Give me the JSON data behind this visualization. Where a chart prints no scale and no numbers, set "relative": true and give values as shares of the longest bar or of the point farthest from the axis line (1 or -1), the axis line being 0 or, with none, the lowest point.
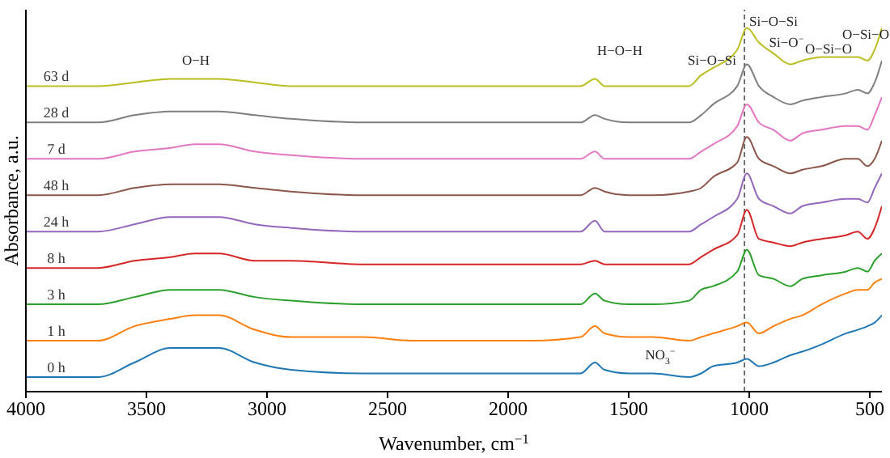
{
  "chart_data": {
    "type": "line",
    "relative": true,
    "xlabel": "Wavenumber, cm$^{−1}$",
    "ylabel": "Absorbance, a.u.",
    "x": [
      4000,
      3700,
      3550,
      3400,
      3300,
      3200,
      3050,
      2900,
      2600,
      2400,
      2100,
      1900,
      1700,
      1640,
      1600,
      1500,
      1400,
      1250,
      1200,
      1150,
      1050,
      1010,
      960,
      900,
      830,
      780,
      700,
      600,
      550,
      510,
      480,
      450
    ],
    "xlim": [
      4000,
      450
    ],
    "xticks": [
      4000,
      3500,
      3000,
      2500,
      2000,
      1500,
      1000,
      500
    ],
    "series": [
      {
        "name": "0 h",
        "color": "#1f77b4",
        "values": [
          0.04,
          0.04,
          0.08,
          0.12,
          0.12,
          0.12,
          0.08,
          0.06,
          0.05,
          0.05,
          0.05,
          0.05,
          0.05,
          0.08,
          0.06,
          0.05,
          0.05,
          0.04,
          0.05,
          0.07,
          0.08,
          0.09,
          0.07,
          0.08,
          0.1,
          0.11,
          0.13,
          0.16,
          0.17,
          0.18,
          0.19,
          0.21
        ]
      },
      {
        "name": "1 h",
        "color": "#ff7f0e",
        "values": [
          0.14,
          0.14,
          0.18,
          0.2,
          0.21,
          0.21,
          0.17,
          0.15,
          0.15,
          0.14,
          0.14,
          0.14,
          0.15,
          0.18,
          0.16,
          0.15,
          0.15,
          0.14,
          0.15,
          0.16,
          0.18,
          0.19,
          0.16,
          0.18,
          0.2,
          0.21,
          0.24,
          0.27,
          0.28,
          0.28,
          0.3,
          0.31
        ]
      },
      {
        "name": "3 h",
        "color": "#2ca02c",
        "values": [
          0.24,
          0.24,
          0.26,
          0.28,
          0.28,
          0.28,
          0.26,
          0.25,
          0.24,
          0.24,
          0.24,
          0.24,
          0.24,
          0.27,
          0.25,
          0.24,
          0.24,
          0.25,
          0.28,
          0.29,
          0.33,
          0.39,
          0.32,
          0.31,
          0.29,
          0.31,
          0.32,
          0.33,
          0.34,
          0.33,
          0.36,
          0.38
        ]
      },
      {
        "name": "8 h",
        "color": "#d62728",
        "values": [
          0.34,
          0.34,
          0.36,
          0.37,
          0.38,
          0.38,
          0.36,
          0.36,
          0.35,
          0.35,
          0.35,
          0.35,
          0.35,
          0.36,
          0.35,
          0.35,
          0.35,
          0.35,
          0.37,
          0.39,
          0.43,
          0.5,
          0.42,
          0.41,
          0.4,
          0.41,
          0.42,
          0.43,
          0.44,
          0.42,
          0.45,
          0.51
        ]
      },
      {
        "name": "24 h",
        "color": "#9467bd",
        "values": [
          0.44,
          0.44,
          0.46,
          0.48,
          0.48,
          0.48,
          0.46,
          0.45,
          0.44,
          0.44,
          0.44,
          0.44,
          0.44,
          0.47,
          0.44,
          0.44,
          0.44,
          0.44,
          0.46,
          0.48,
          0.53,
          0.6,
          0.53,
          0.51,
          0.49,
          0.51,
          0.52,
          0.53,
          0.53,
          0.52,
          0.56,
          0.6
        ]
      },
      {
        "name": "48 h",
        "color": "#8c564b",
        "values": [
          0.54,
          0.54,
          0.56,
          0.57,
          0.57,
          0.57,
          0.56,
          0.55,
          0.54,
          0.54,
          0.54,
          0.54,
          0.54,
          0.56,
          0.55,
          0.54,
          0.54,
          0.55,
          0.56,
          0.59,
          0.63,
          0.7,
          0.64,
          0.62,
          0.6,
          0.61,
          0.62,
          0.64,
          0.64,
          0.62,
          0.64,
          0.69
        ]
      },
      {
        "name": "7 d",
        "color": "#e377c2",
        "values": [
          0.64,
          0.64,
          0.66,
          0.67,
          0.68,
          0.68,
          0.66,
          0.65,
          0.64,
          0.64,
          0.64,
          0.64,
          0.64,
          0.66,
          0.64,
          0.64,
          0.64,
          0.64,
          0.66,
          0.68,
          0.73,
          0.79,
          0.74,
          0.72,
          0.69,
          0.71,
          0.72,
          0.73,
          0.73,
          0.72,
          0.76,
          0.81
        ]
      },
      {
        "name": "28 d",
        "color": "#7f7f7f",
        "values": [
          0.74,
          0.74,
          0.76,
          0.77,
          0.77,
          0.77,
          0.76,
          0.75,
          0.74,
          0.74,
          0.74,
          0.74,
          0.74,
          0.76,
          0.75,
          0.74,
          0.74,
          0.74,
          0.76,
          0.79,
          0.84,
          0.9,
          0.84,
          0.81,
          0.79,
          0.8,
          0.81,
          0.82,
          0.83,
          0.82,
          0.85,
          0.91
        ]
      },
      {
        "name": "63 d",
        "color": "#bcbd22",
        "values": [
          0.84,
          0.84,
          0.85,
          0.86,
          0.86,
          0.86,
          0.85,
          0.84,
          0.84,
          0.84,
          0.84,
          0.84,
          0.84,
          0.86,
          0.84,
          0.84,
          0.84,
          0.84,
          0.87,
          0.89,
          0.94,
          1,
          0.96,
          0.93,
          0.9,
          0.91,
          0.92,
          0.92,
          0.92,
          0.91,
          0.94,
          1
        ]
      }
    ],
    "ref_lines": [
      {
        "axis": "x",
        "value": 1020,
        "color": "#555555",
        "line_style": "dashed"
      }
    ],
    "annotations": [
      "O−H",
      "H−O−H",
      "Si−O−Si",
      "Si−O−Si",
      "Si−O$^{−}$",
      "O−Si−O",
      "O−Si−O",
      "NO$_{3}$$^{−}$"
    ],
    "grid": false,
    "legend": false
  }
}
